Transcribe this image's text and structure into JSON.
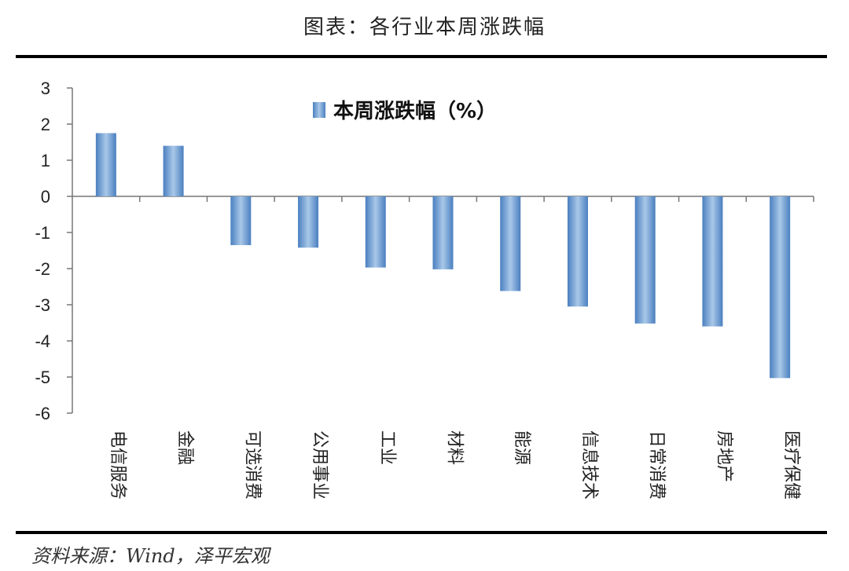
{
  "page": {
    "title": "图表：各行业本周涨跌幅",
    "source": "资料来源：Wind，泽平宏观"
  },
  "chart_data": {
    "type": "bar",
    "categories": [
      "电信服务",
      "金融",
      "可选消费",
      "公用事业",
      "工业",
      "材料",
      "能源",
      "信息技术",
      "日常消费",
      "房地产",
      "医疗保健"
    ],
    "series": [
      {
        "name": "本周涨跌幅（%）",
        "values": [
          1.75,
          1.4,
          -1.35,
          -1.42,
          -1.97,
          -2.02,
          -2.62,
          -3.05,
          -3.52,
          -3.6,
          -5.03
        ]
      }
    ],
    "ylim": [
      -6,
      3
    ],
    "yticks": [
      "3",
      "2",
      "1",
      "0",
      "-1",
      "-2",
      "-3",
      "-4",
      "-5",
      "-6"
    ],
    "legend_position": "top-center",
    "grid": false,
    "bar_color": "#4a7fc0",
    "bar_highlight": "#a9c8e8"
  }
}
